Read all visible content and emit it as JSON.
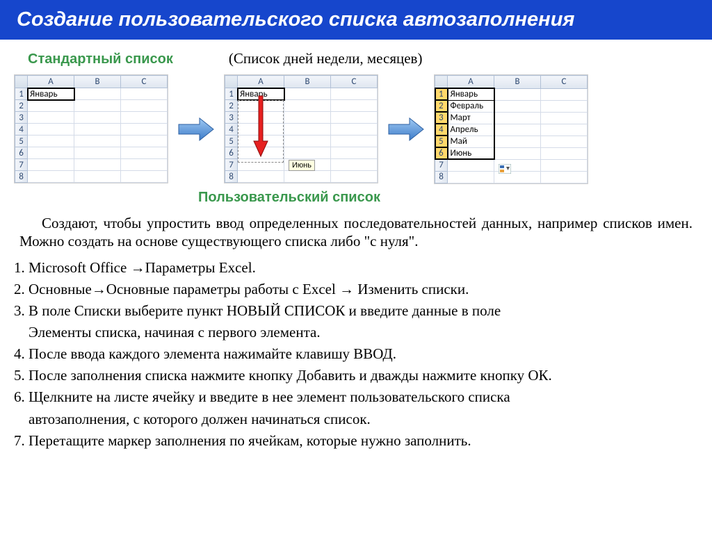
{
  "title": "Создание пользовательского списка автозаполнения",
  "headings": {
    "standard_list": "Стандартный список",
    "standard_list_note": "(Список дней недели, месяцев)",
    "custom_list": "Пользовательский  список"
  },
  "excel": {
    "columns": [
      "A",
      "B",
      "C"
    ],
    "row_numbers": [
      "1",
      "2",
      "3",
      "4",
      "5",
      "6",
      "7",
      "8"
    ],
    "step1_cellA1": "Январь",
    "step2_cellA1": "Январь",
    "step2_tooltip": "Июнь",
    "step3_values": [
      "Январь",
      "Февраль",
      "Март",
      "Апрель",
      "Май",
      "Июнь"
    ],
    "colors": {
      "header_bg_top": "#f2f5fa",
      "header_bg_bottom": "#dfe6f0",
      "header_border": "#b1c0d6",
      "header_text": "#2f4a72",
      "cell_border": "#d4dbe8",
      "selected_row_header": "#ffd86b",
      "selection_border": "#000000",
      "tooltip_bg": "#ffffe1"
    }
  },
  "arrows": {
    "blue_fill": "#5b9bd5",
    "blue_stroke": "#3d6fa8",
    "red_fill": "#e11",
    "red_stroke": "#a00"
  },
  "intro_paragraph": "Создают, чтобы упростить ввод определенных последовательностей данных, например списков имен.  Можно создать на основе существующего списка либо \"с нуля\".",
  "steps": [
    "1. Microsoft Office →Параметры Excel.",
    "2. Основные→Основные параметры работы с Excel → Изменить списки.",
    "3. В поле Списки выберите пункт НОВЫЙ СПИСОК и введите данные в поле Элементы списка, начиная с первого элемента.",
    "4. После ввода каждого элемента нажимайте клавишу ВВОД.",
    "5. После заполнения списка нажмите кнопку Добавить и дважды нажмите кнопку ОК.",
    "6. Щелкните на листе ячейку и введите в нее элемент пользовательского списка автозаполнения, с которого должен начинаться список.",
    "7. Перетащите маркер заполнения по ячейкам, которые нужно заполнить."
  ]
}
